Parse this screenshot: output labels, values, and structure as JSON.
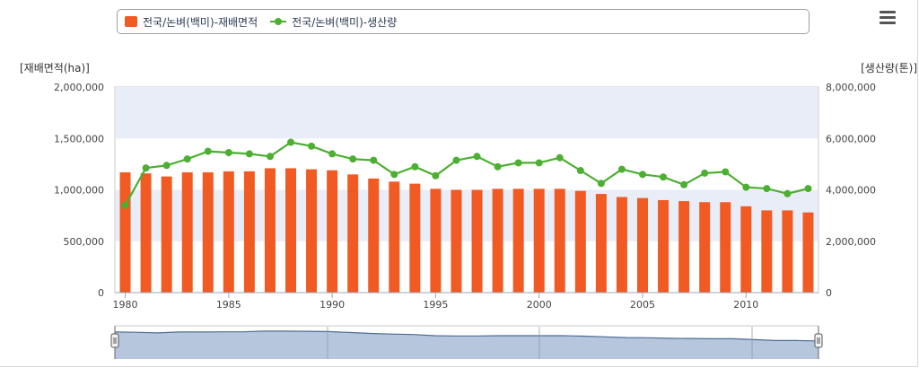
{
  "legend": {
    "bar_label": "전국/논벼(백미)-재배면적",
    "line_label": "전국/논벼(백미)-생산량"
  },
  "colors": {
    "bar": "#f15a22",
    "line": "#4caf31",
    "band": "#e8edf8",
    "navigator_fill": "#b5c6dd",
    "navigator_line": "#4e6d94"
  },
  "chart_data": {
    "type": "bar",
    "x": [
      1980,
      1981,
      1982,
      1983,
      1984,
      1985,
      1986,
      1987,
      1988,
      1989,
      1990,
      1991,
      1992,
      1993,
      1994,
      1995,
      1996,
      1997,
      1998,
      1999,
      2000,
      2001,
      2002,
      2003,
      2004,
      2005,
      2006,
      2007,
      2008,
      2009,
      2010,
      2011,
      2012,
      2013
    ],
    "series": [
      {
        "name": "전국/논벼(백미)-재배면적",
        "type": "bar",
        "axis": "left",
        "values": [
          1170000,
          1160000,
          1130000,
          1170000,
          1170000,
          1180000,
          1180000,
          1210000,
          1210000,
          1200000,
          1190000,
          1150000,
          1110000,
          1080000,
          1060000,
          1010000,
          1000000,
          1000000,
          1010000,
          1010000,
          1010000,
          1010000,
          990000,
          960000,
          930000,
          920000,
          900000,
          890000,
          880000,
          880000,
          840000,
          800000,
          800000,
          780000
        ]
      },
      {
        "name": "전국/논벼(백미)-생산량",
        "type": "line",
        "axis": "right",
        "values": [
          3400000,
          4850000,
          4950000,
          5200000,
          5500000,
          5450000,
          5400000,
          5300000,
          5850000,
          5700000,
          5400000,
          5200000,
          5150000,
          4600000,
          4900000,
          4550000,
          5150000,
          5300000,
          4900000,
          5050000,
          5050000,
          5250000,
          4750000,
          4250000,
          4800000,
          4600000,
          4500000,
          4200000,
          4650000,
          4700000,
          4100000,
          4050000,
          3850000,
          4050000
        ]
      }
    ],
    "left_axis": {
      "title": "[재배면적(ha)]",
      "ylim": [
        0,
        2000000
      ],
      "tick_labels": [
        "0",
        "500,000",
        "1,000,000",
        "1,500,000",
        "2,000,000"
      ]
    },
    "right_axis": {
      "title": "[생산량(톤)]",
      "ylim": [
        0,
        8000000
      ],
      "tick_labels": [
        "0",
        "2,000,000",
        "4,000,000",
        "6,000,000",
        "8,000,000"
      ]
    },
    "x_tick_labels": [
      "1980",
      "1985",
      "1990",
      "1995",
      "2000",
      "2005",
      "2010"
    ],
    "legend_position": "top"
  }
}
